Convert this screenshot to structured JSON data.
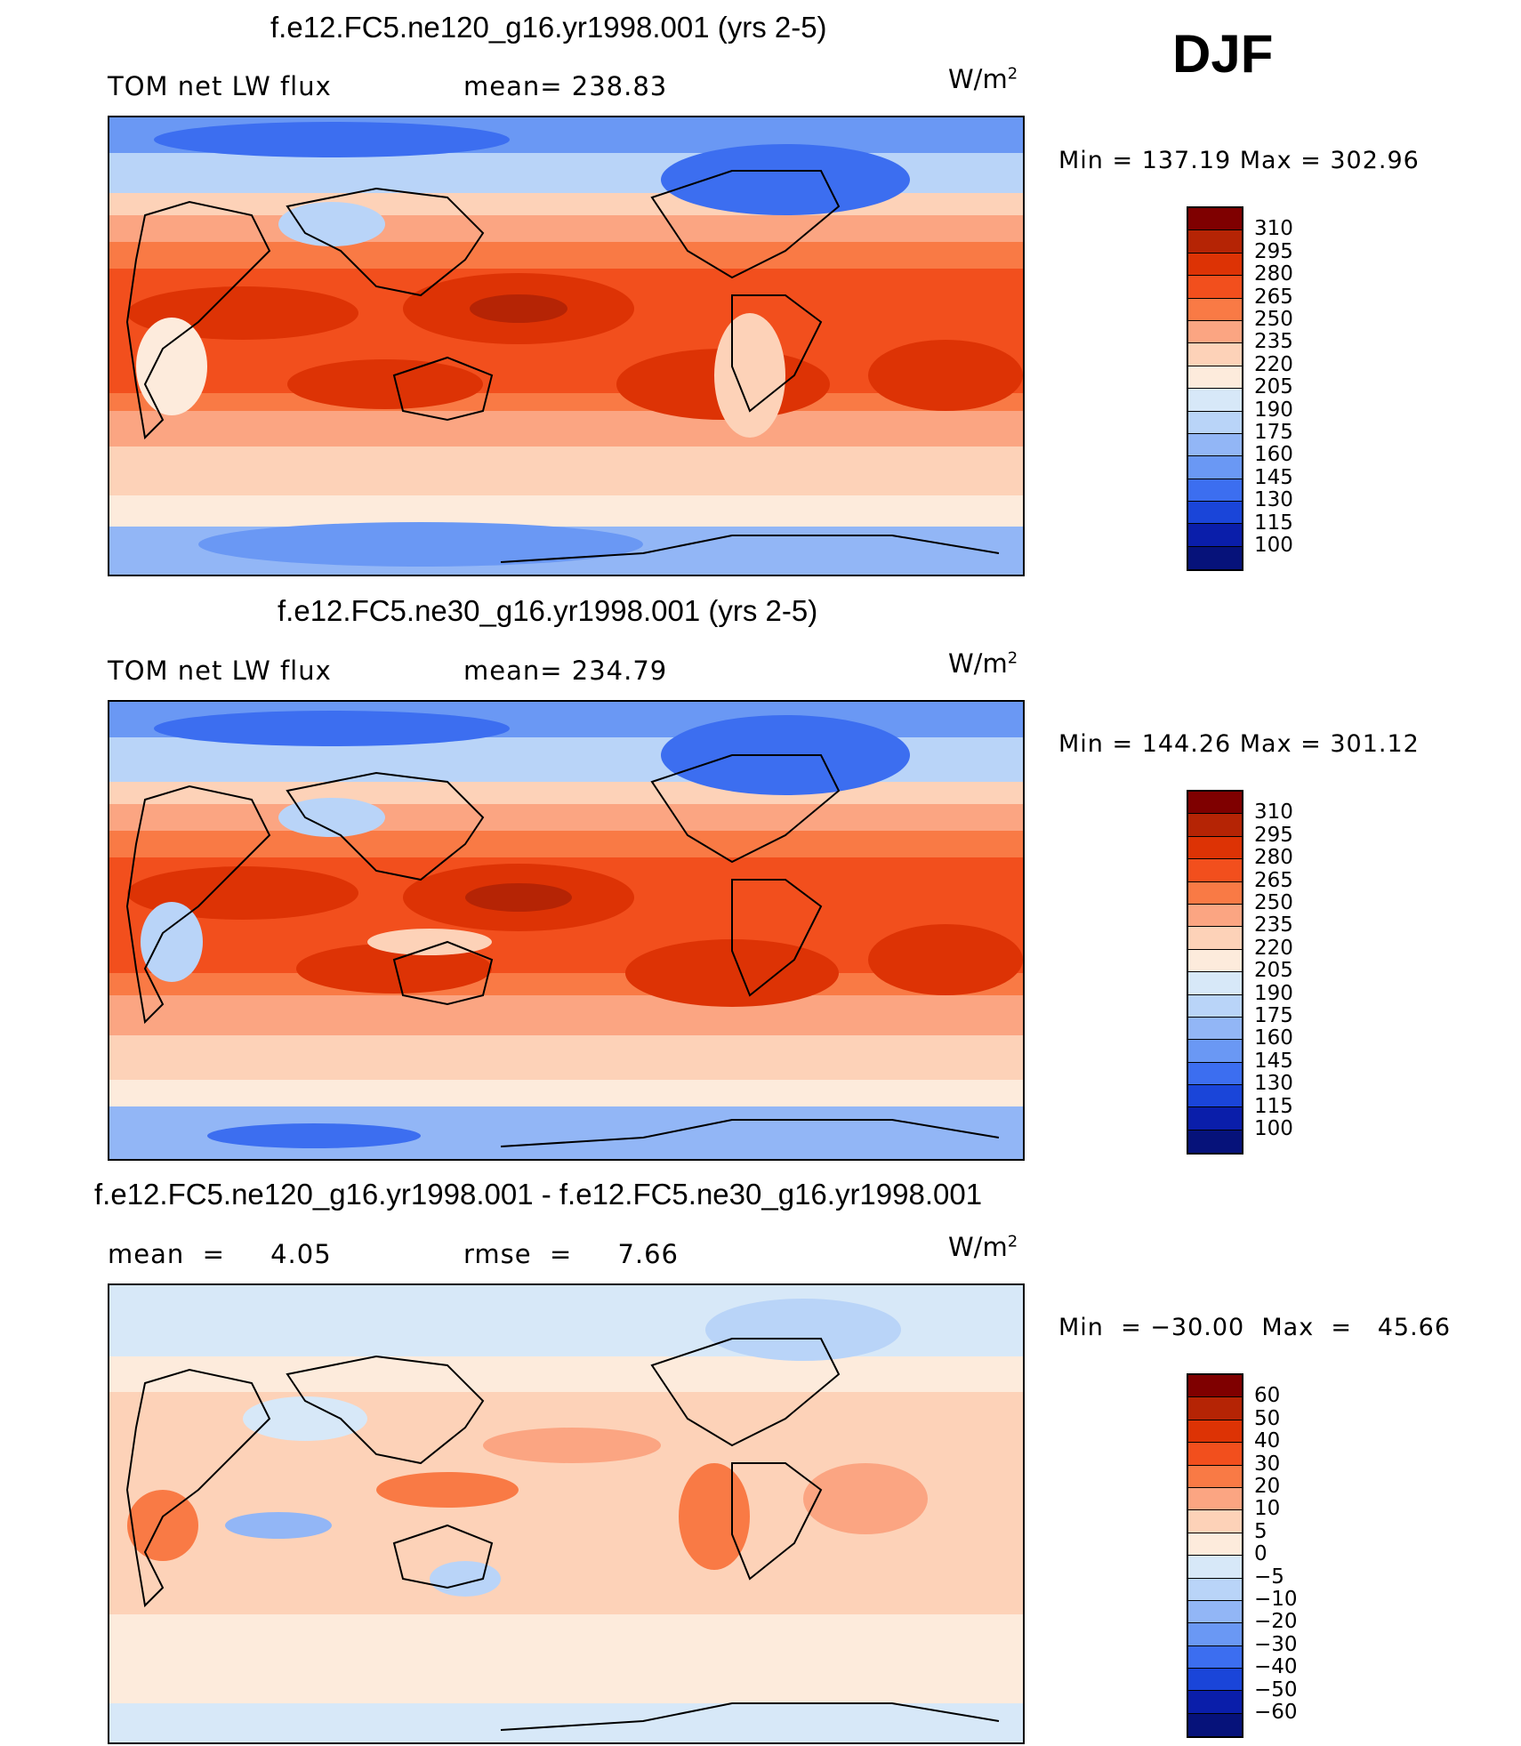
{
  "season": "DJF",
  "panels": [
    {
      "title": "f.e12.FC5.ne120_g16.yr1998.001 (yrs 2-5)",
      "left_label": "TOM net LW flux",
      "center_label": "mean=  238.83",
      "units_base": "W/m",
      "units_exp": "2",
      "minmax": "Min  =  137.19  Max  =  302.96",
      "colorbar": {
        "labels": [
          "310",
          "295",
          "280",
          "265",
          "250",
          "235",
          "220",
          "205",
          "190",
          "175",
          "160",
          "145",
          "130",
          "115",
          "100"
        ],
        "colors": [
          "#7f0000",
          "#b52405",
          "#dd3305",
          "#f24f1d",
          "#f97a45",
          "#fba582",
          "#fdd2b8",
          "#fdebdc",
          "#d7e8f8",
          "#b9d4f8",
          "#92b6f6",
          "#6a98f4",
          "#3c6ef0",
          "#1a45d9",
          "#0a1eaa",
          "#06127a"
        ]
      }
    },
    {
      "title": "f.e12.FC5.ne30_g16.yr1998.001 (yrs 2-5)",
      "left_label": "TOM net LW flux",
      "center_label": "mean=  234.79",
      "units_base": "W/m",
      "units_exp": "2",
      "minmax": "Min  =  144.26  Max  =  301.12",
      "colorbar": {
        "labels": [
          "310",
          "295",
          "280",
          "265",
          "250",
          "235",
          "220",
          "205",
          "190",
          "175",
          "160",
          "145",
          "130",
          "115",
          "100"
        ],
        "colors": [
          "#7f0000",
          "#b52405",
          "#dd3305",
          "#f24f1d",
          "#f97a45",
          "#fba582",
          "#fdd2b8",
          "#fdebdc",
          "#d7e8f8",
          "#b9d4f8",
          "#92b6f6",
          "#6a98f4",
          "#3c6ef0",
          "#1a45d9",
          "#0a1eaa",
          "#06127a"
        ]
      }
    },
    {
      "title": "f.e12.FC5.ne120_g16.yr1998.001 - f.e12.FC5.ne30_g16.yr1998.001",
      "left_label": "mean  =     4.05",
      "center_label": "rmse  =     7.66",
      "units_base": "W/m",
      "units_exp": "2",
      "minmax": "Min  = −30.00  Max  =   45.66",
      "colorbar": {
        "labels": [
          "60",
          "50",
          "40",
          "30",
          "20",
          "10",
          "5",
          "0",
          "−5",
          "−10",
          "−20",
          "−30",
          "−40",
          "−50",
          "−60"
        ],
        "colors": [
          "#7f0000",
          "#b52405",
          "#dd3305",
          "#f24f1d",
          "#f97a45",
          "#fba582",
          "#fdd2b8",
          "#fdebdc",
          "#d7e8f8",
          "#b9d4f8",
          "#92b6f6",
          "#6a98f4",
          "#3c6ef0",
          "#1a45d9",
          "#0a1eaa",
          "#06127a"
        ]
      }
    }
  ]
}
